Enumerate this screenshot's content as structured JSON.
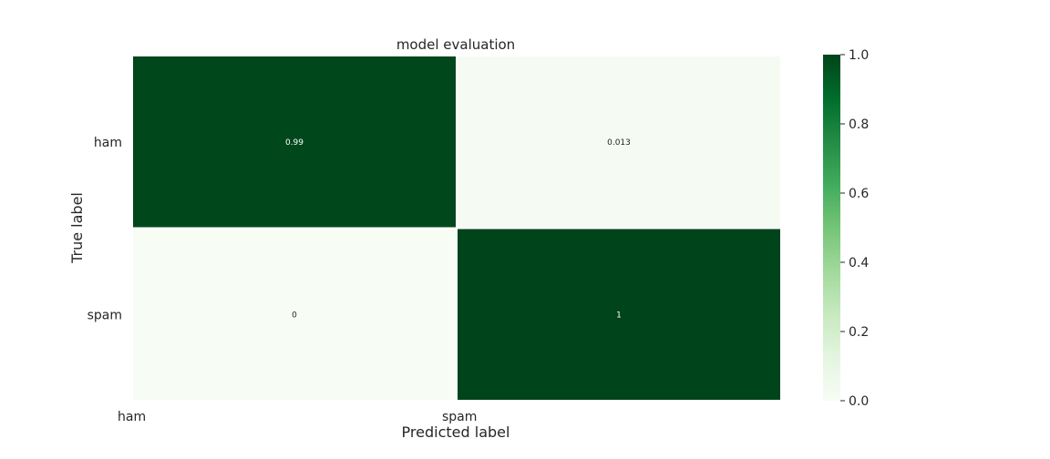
{
  "chart_data": {
    "type": "heatmap",
    "title": "model evaluation",
    "xlabel": "Predicted label",
    "ylabel": "True label",
    "x_categories": [
      "ham",
      "spam"
    ],
    "y_categories": [
      "ham",
      "spam"
    ],
    "values": [
      [
        0.99,
        0.013
      ],
      [
        0,
        1
      ]
    ],
    "annotations": [
      [
        "0.99",
        "0.013"
      ],
      [
        "0",
        "1"
      ]
    ],
    "colormap": "Greens",
    "color_low": "#f7fcf5",
    "color_high": "#00441b",
    "cell_separator_color": "#ffffff",
    "colorbar": {
      "vmin": 0.0,
      "vmax": 1.0,
      "ticks": [
        "0.0",
        "0.2",
        "0.4",
        "0.6",
        "0.8",
        "1.0"
      ]
    }
  }
}
